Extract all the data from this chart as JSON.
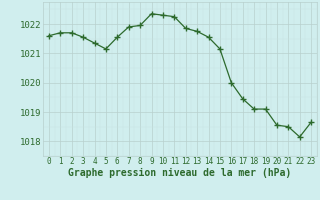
{
  "x": [
    0,
    1,
    2,
    3,
    4,
    5,
    6,
    7,
    8,
    9,
    10,
    11,
    12,
    13,
    14,
    15,
    16,
    17,
    18,
    19,
    20,
    21,
    22,
    23
  ],
  "y": [
    1021.6,
    1021.7,
    1021.7,
    1021.55,
    1021.35,
    1021.15,
    1021.55,
    1021.9,
    1021.95,
    1022.35,
    1022.3,
    1022.25,
    1021.85,
    1021.75,
    1021.55,
    1021.15,
    1020.0,
    1019.45,
    1019.1,
    1019.1,
    1018.55,
    1018.5,
    1018.15,
    1018.65
  ],
  "line_color": "#2d6a2d",
  "marker": "+",
  "marker_size": 4,
  "bg_color": "#d0eeee",
  "grid_color_major": "#b8d0ce",
  "grid_color_minor": "#c8e4e2",
  "xlabel": "Graphe pression niveau de la mer (hPa)",
  "xlabel_color": "#2d6a2d",
  "xlabel_fontsize": 7,
  "tick_color": "#2d6a2d",
  "ylim": [
    1017.5,
    1022.75
  ],
  "yticks": [
    1018,
    1019,
    1020,
    1021,
    1022
  ],
  "xticks": [
    0,
    1,
    2,
    3,
    4,
    5,
    6,
    7,
    8,
    9,
    10,
    11,
    12,
    13,
    14,
    15,
    16,
    17,
    18,
    19,
    20,
    21,
    22,
    23
  ]
}
